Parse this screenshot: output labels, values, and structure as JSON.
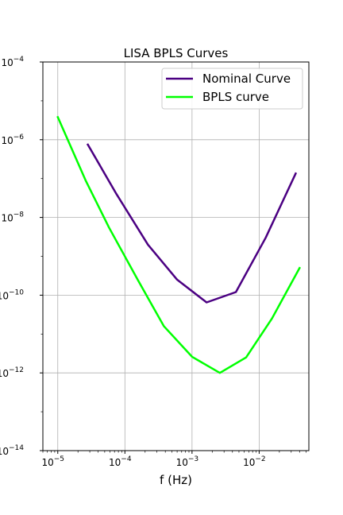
{
  "chart_data": {
    "type": "line",
    "title": "LISA BPLS Curves",
    "xlabel": "f (Hz)",
    "ylabel": "",
    "xscale": "log",
    "yscale": "log",
    "xlim": [
      6e-06,
      0.055
    ],
    "ylim": [
      1e-14,
      0.0001
    ],
    "grid": true,
    "legend_position": "top-right",
    "x_ticks": [
      {
        "value": 1e-05,
        "base": "10",
        "exp": "−5"
      },
      {
        "value": 0.0001,
        "base": "10",
        "exp": "−4"
      },
      {
        "value": 0.001,
        "base": "10",
        "exp": "−3"
      },
      {
        "value": 0.01,
        "base": "10",
        "exp": "−2"
      }
    ],
    "y_ticks": [
      {
        "value": 0.0001,
        "base": "10",
        "exp": "−4"
      },
      {
        "value": 1e-06,
        "base": "10",
        "exp": "−6"
      },
      {
        "value": 1e-08,
        "base": "10",
        "exp": "−8"
      },
      {
        "value": 1e-10,
        "base": "10",
        "exp": "−10"
      },
      {
        "value": 1e-12,
        "base": "10",
        "exp": "−12"
      },
      {
        "value": 1e-14,
        "base": "10",
        "exp": "−14"
      }
    ],
    "series": [
      {
        "name": "Nominal Curve",
        "color": "#4b0082",
        "x": [
          2.8e-05,
          7.5e-05,
          0.00022,
          0.0006,
          0.00165,
          0.0045,
          0.0125,
          0.035
        ],
        "y": [
          7.5e-07,
          4e-08,
          2e-09,
          2.5e-10,
          6.5e-11,
          1.2e-10,
          3e-09,
          1.35e-07
        ]
      },
      {
        "name": "BPLS curve",
        "color": "#00ff00",
        "x": [
          1e-05,
          2.6e-05,
          5.8e-05,
          0.000155,
          0.00038,
          0.001,
          0.0026,
          0.0064,
          0.0155,
          0.04
        ],
        "y": [
          3.8e-06,
          9e-08,
          5.5e-09,
          2.5e-10,
          1.6e-11,
          2.6e-12,
          1e-12,
          2.5e-12,
          2.5e-11,
          5e-10
        ]
      }
    ]
  }
}
